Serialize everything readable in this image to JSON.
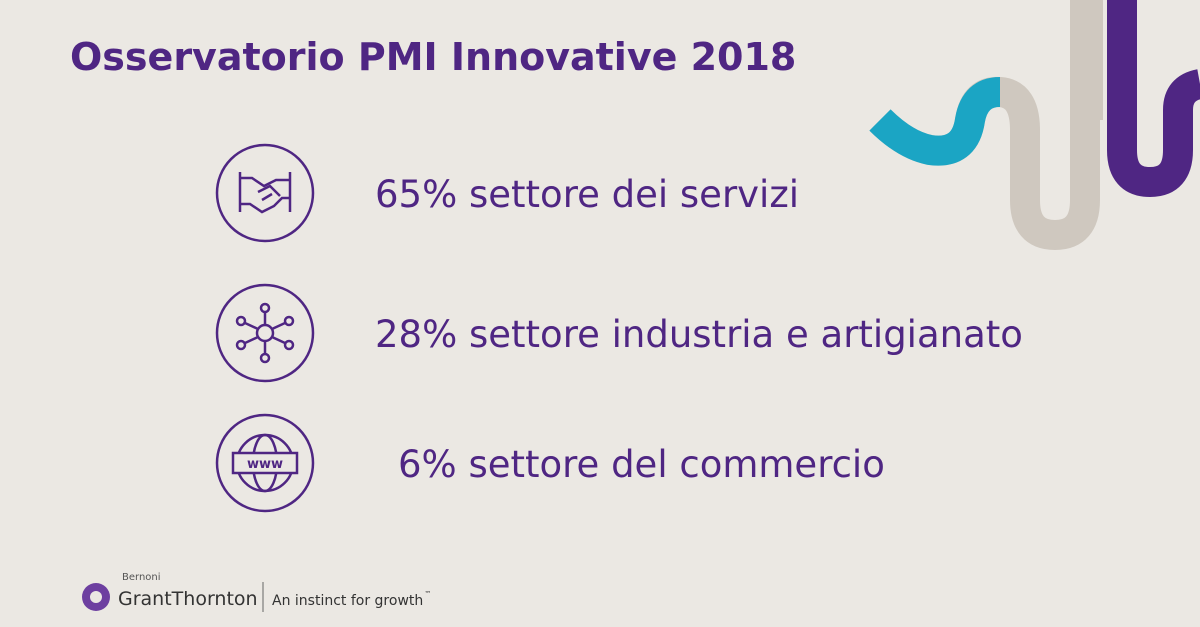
{
  "header": {
    "title": "Osservatorio PMI Innovative 2018"
  },
  "items": [
    {
      "text": "65% settore dei servizi"
    },
    {
      "text": "28% settore industria e artigianato"
    },
    {
      "text": "6% settore del commercio"
    }
  ],
  "footer": {
    "brand_top": "Bernoni",
    "brand": "GrantThornton",
    "tagline": "An instinct for growth",
    "trademark": "™"
  }
}
